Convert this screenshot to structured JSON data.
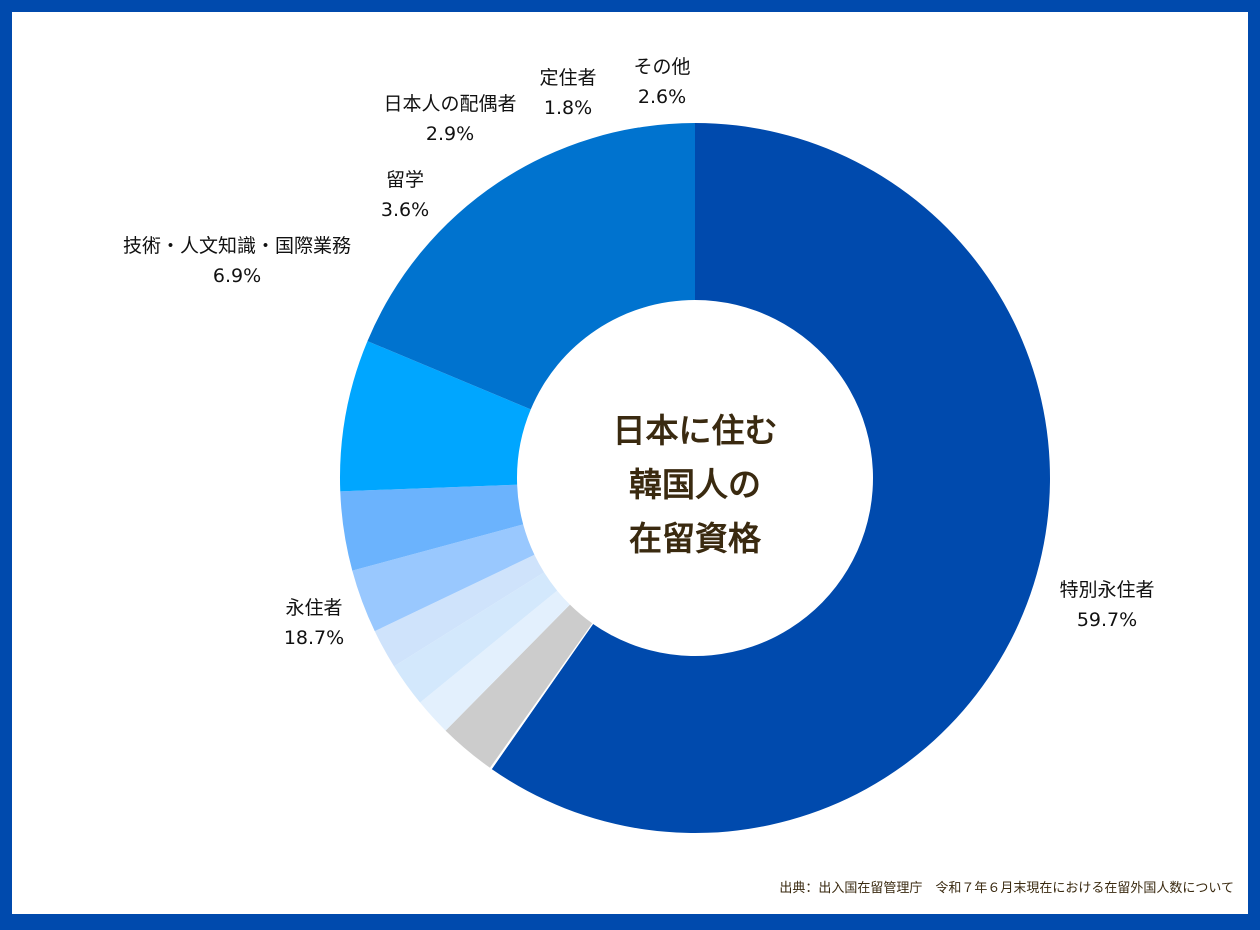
{
  "chart_data": {
    "type": "pie",
    "donut": true,
    "title_lines": [
      "日本に住む",
      "韓国人の",
      "在留資格"
    ],
    "slices": [
      {
        "label": "特別永住者",
        "value": 59.7,
        "value_label": "59.7%",
        "color": "#004aad"
      },
      {
        "label": "",
        "value": 0.1,
        "value_label": "",
        "color": "#ffffff"
      },
      {
        "label": "その他",
        "value": 2.6,
        "value_label": "2.6%",
        "color": "#cccccc"
      },
      {
        "label": "",
        "value": 1.7,
        "value_label": "",
        "color": "#e3f0fd"
      },
      {
        "label": "",
        "value": 2.0,
        "value_label": "",
        "color": "#d3e8fc"
      },
      {
        "label": "定住者",
        "value": 1.8,
        "value_label": "1.8%",
        "color": "#cfe3fb"
      },
      {
        "label": "日本人の配偶者",
        "value": 2.9,
        "value_label": "2.9%",
        "color": "#99c8fe"
      },
      {
        "label": "留学",
        "value": 3.6,
        "value_label": "3.6%",
        "color": "#6bb3fd"
      },
      {
        "label": "技術・人文知識・国際業務",
        "value": 6.9,
        "value_label": "6.9%",
        "color": "#00a6ff"
      },
      {
        "label": "永住者",
        "value": 18.7,
        "value_label": "18.7%",
        "color": "#0073cf"
      }
    ],
    "direction": "counterclockwise-from-top-for-small-slices"
  },
  "source": "出典：出入国在留管理庁　令和７年６月末現在における在留外国人数について",
  "colors": {
    "frame": "#004aad",
    "center_text": "#3a2a10"
  }
}
